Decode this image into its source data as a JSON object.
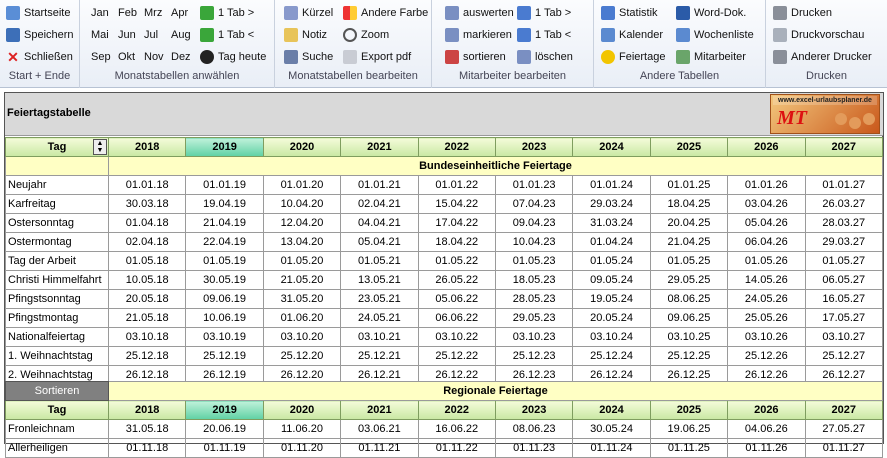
{
  "ribbon": {
    "groups": [
      {
        "label": "Start + Ende"
      },
      {
        "label": "Monatstabellen anwählen"
      },
      {
        "label": "Monatstabellen bearbeiten"
      },
      {
        "label": "Mitarbeiter bearbeiten"
      },
      {
        "label": "Andere Tabellen"
      },
      {
        "label": "Drucken"
      }
    ],
    "start": [
      "Startseite",
      "Speichern",
      "Schließen"
    ],
    "months": [
      "Jan",
      "Feb",
      "Mrz",
      "Apr",
      "Mai",
      "Jun",
      "Jul",
      "Aug",
      "Sep",
      "Okt",
      "Nov",
      "Dez"
    ],
    "tabnav": [
      "1 Tab >",
      "1 Tab <",
      "Tag heute"
    ],
    "bearb": [
      "Kürzel",
      "Notiz",
      "Suche",
      "Andere Farbe",
      "Zoom",
      "Export pdf"
    ],
    "mitarb": [
      "auswerten",
      "markieren",
      "sortieren",
      "1 Tab >",
      "1 Tab <",
      "löschen"
    ],
    "tabellen": [
      "Statistik",
      "Kalender",
      "Feiertage",
      "Word-Dok.",
      "Wochenliste",
      "Mitarbeiter"
    ],
    "drucken": [
      "Drucken",
      "Druckvorschau",
      "Anderer Drucker"
    ]
  },
  "sheet": {
    "title": "Feiertagstabelle",
    "logo_url_text": "www.excel-urlaubsplaner.de",
    "logo_mark": "MT",
    "col_label": "Tag",
    "years": [
      "2018",
      "2019",
      "2020",
      "2021",
      "2022",
      "2023",
      "2024",
      "2025",
      "2026",
      "2027"
    ],
    "section1": "Bundeseinheitliche Feiertage",
    "rows1": [
      {
        "name": "Neujahr",
        "d": [
          "01.01.18",
          "01.01.19",
          "01.01.20",
          "01.01.21",
          "01.01.22",
          "01.01.23",
          "01.01.24",
          "01.01.25",
          "01.01.26",
          "01.01.27"
        ]
      },
      {
        "name": "Karfreitag",
        "d": [
          "30.03.18",
          "19.04.19",
          "10.04.20",
          "02.04.21",
          "15.04.22",
          "07.04.23",
          "29.03.24",
          "18.04.25",
          "03.04.26",
          "26.03.27"
        ]
      },
      {
        "name": "Ostersonntag",
        "d": [
          "01.04.18",
          "21.04.19",
          "12.04.20",
          "04.04.21",
          "17.04.22",
          "09.04.23",
          "31.03.24",
          "20.04.25",
          "05.04.26",
          "28.03.27"
        ]
      },
      {
        "name": "Ostermontag",
        "d": [
          "02.04.18",
          "22.04.19",
          "13.04.20",
          "05.04.21",
          "18.04.22",
          "10.04.23",
          "01.04.24",
          "21.04.25",
          "06.04.26",
          "29.03.27"
        ]
      },
      {
        "name": "Tag der Arbeit",
        "d": [
          "01.05.18",
          "01.05.19",
          "01.05.20",
          "01.05.21",
          "01.05.22",
          "01.05.23",
          "01.05.24",
          "01.05.25",
          "01.05.26",
          "01.05.27"
        ]
      },
      {
        "name": "Christi Himmelfahrt",
        "d": [
          "10.05.18",
          "30.05.19",
          "21.05.20",
          "13.05.21",
          "26.05.22",
          "18.05.23",
          "09.05.24",
          "29.05.25",
          "14.05.26",
          "06.05.27"
        ]
      },
      {
        "name": "Pfingstsonntag",
        "d": [
          "20.05.18",
          "09.06.19",
          "31.05.20",
          "23.05.21",
          "05.06.22",
          "28.05.23",
          "19.05.24",
          "08.06.25",
          "24.05.26",
          "16.05.27"
        ]
      },
      {
        "name": "Pfingstmontag",
        "d": [
          "21.05.18",
          "10.06.19",
          "01.06.20",
          "24.05.21",
          "06.06.22",
          "29.05.23",
          "20.05.24",
          "09.06.25",
          "25.05.26",
          "17.05.27"
        ]
      },
      {
        "name": "Nationalfeiertag",
        "d": [
          "03.10.18",
          "03.10.19",
          "03.10.20",
          "03.10.21",
          "03.10.22",
          "03.10.23",
          "03.10.24",
          "03.10.25",
          "03.10.26",
          "03.10.27"
        ]
      },
      {
        "name": "1. Weihnachtstag",
        "d": [
          "25.12.18",
          "25.12.19",
          "25.12.20",
          "25.12.21",
          "25.12.22",
          "25.12.23",
          "25.12.24",
          "25.12.25",
          "25.12.26",
          "25.12.27"
        ]
      },
      {
        "name": "2. Weihnachtstag",
        "d": [
          "26.12.18",
          "26.12.19",
          "26.12.20",
          "26.12.21",
          "26.12.22",
          "26.12.23",
          "26.12.24",
          "26.12.25",
          "26.12.26",
          "26.12.27"
        ]
      }
    ],
    "sort_button": "Sortieren",
    "section2": "Regionale Feiertage",
    "rows2": [
      {
        "name": "Fronleichnam",
        "d": [
          "31.05.18",
          "20.06.19",
          "11.06.20",
          "03.06.21",
          "16.06.22",
          "08.06.23",
          "30.05.24",
          "19.06.25",
          "04.06.26",
          "27.05.27"
        ]
      },
      {
        "name": "Allerheiligen",
        "d": [
          "01.11.18",
          "01.11.19",
          "01.11.20",
          "01.11.21",
          "01.11.22",
          "01.11.23",
          "01.11.24",
          "01.11.25",
          "01.11.26",
          "01.11.27"
        ]
      }
    ]
  },
  "colors": {
    "header_green": "#c9e8a3",
    "selected_year": "#5fd1a4",
    "section_yellow": "#ffffc4",
    "title_gray": "#d9d9d9"
  }
}
